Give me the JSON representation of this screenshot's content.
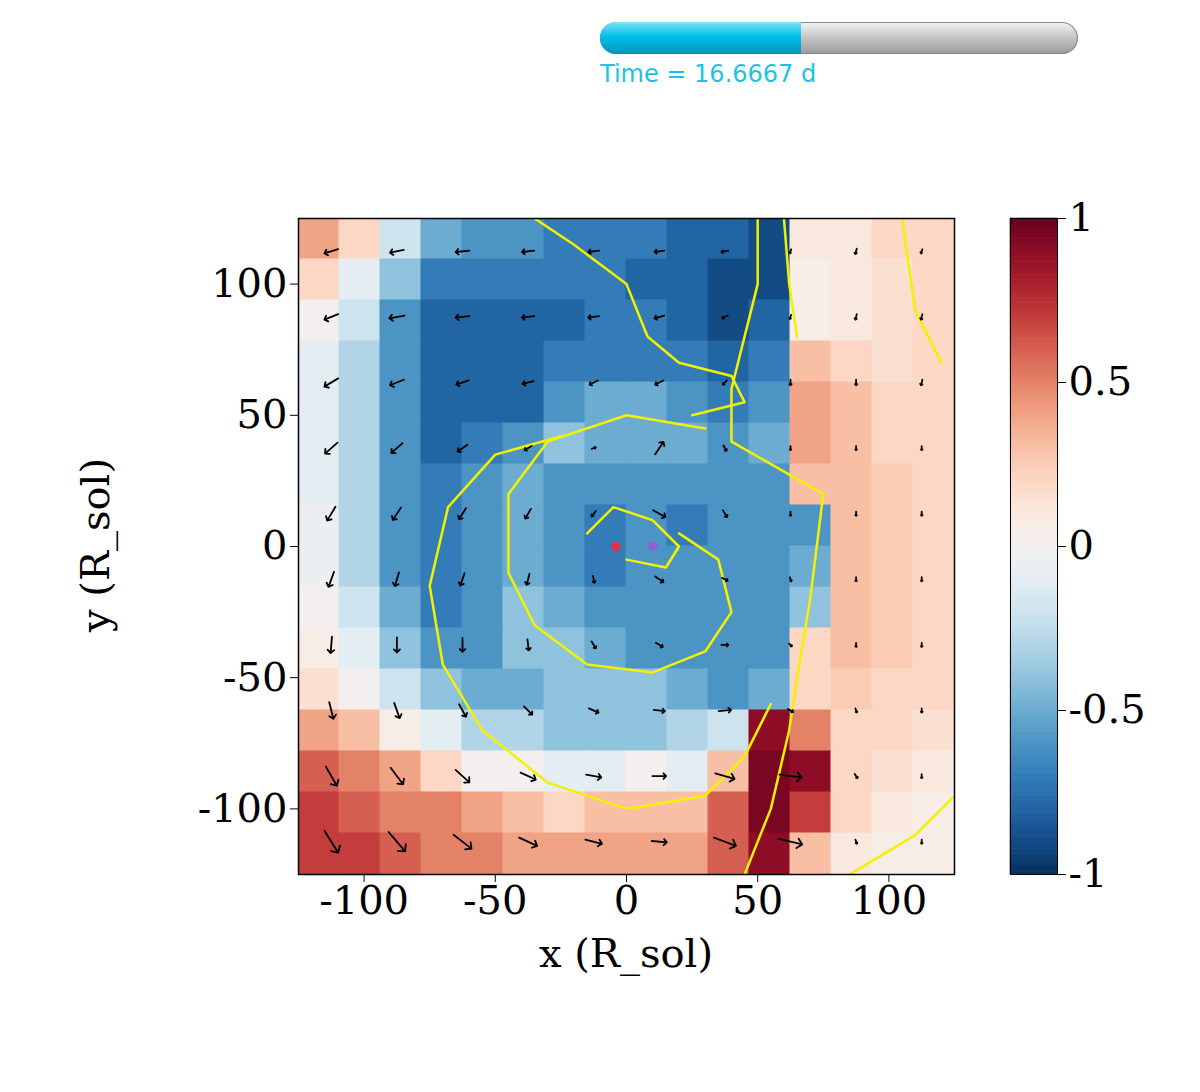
{
  "chart_data": {
    "type": "vector_field",
    "time_label": "Time = 16.6667 d",
    "progress": 0.42,
    "x_label": "x (R_sol)",
    "y_label": "y (R_sol)",
    "xlim": [
      -125,
      125
    ],
    "ylim": [
      -125,
      125
    ],
    "xticks": [
      -100,
      -50,
      0,
      50,
      100
    ],
    "yticks": [
      -100,
      -50,
      0,
      50,
      100
    ],
    "clim": [
      -1,
      1
    ],
    "cticks": [
      -1,
      -0.5,
      0,
      0.5,
      1
    ],
    "cells": {
      "x_edges": [
        -125,
        -109.375,
        -93.75,
        -78.125,
        -62.5,
        -46.875,
        -31.25,
        -15.625,
        0,
        15.625,
        31.25,
        46.875,
        62.5,
        78.125,
        93.75,
        109.375,
        125
      ],
      "y_edges": [
        125,
        109.375,
        93.75,
        78.125,
        62.5,
        46.875,
        31.25,
        15.625,
        0,
        -15.625,
        -31.25,
        -46.875,
        -62.5,
        -78.125,
        -93.75,
        -109.375,
        -125
      ],
      "values": [
        [
          0.4,
          0.2,
          -0.2,
          -0.5,
          -0.6,
          -0.6,
          -0.7,
          -0.7,
          -0.7,
          -0.8,
          -0.8,
          -0.9,
          0.1,
          0.1,
          0.2,
          0.2
        ],
        [
          0.2,
          -0.1,
          -0.4,
          -0.7,
          -0.7,
          -0.7,
          -0.7,
          -0.7,
          -0.8,
          -0.8,
          -0.9,
          -0.9,
          0.05,
          0.1,
          0.15,
          0.2
        ],
        [
          0.0,
          -0.2,
          -0.6,
          -0.8,
          -0.8,
          -0.8,
          -0.8,
          -0.7,
          -0.7,
          -0.8,
          -0.9,
          -0.8,
          0.05,
          0.1,
          0.15,
          0.2
        ],
        [
          -0.1,
          -0.3,
          -0.6,
          -0.8,
          -0.8,
          -0.8,
          -0.7,
          -0.7,
          -0.7,
          -0.7,
          -0.8,
          -0.7,
          0.3,
          0.2,
          0.15,
          0.2
        ],
        [
          -0.1,
          -0.3,
          -0.6,
          -0.8,
          -0.8,
          -0.8,
          -0.6,
          -0.5,
          -0.5,
          -0.6,
          -0.7,
          -0.6,
          0.4,
          0.3,
          0.2,
          0.2
        ],
        [
          -0.1,
          -0.3,
          -0.6,
          -0.8,
          -0.7,
          -0.6,
          -0.4,
          -0.5,
          -0.5,
          -0.5,
          -0.6,
          -0.5,
          0.4,
          0.3,
          0.2,
          0.2
        ],
        [
          -0.1,
          -0.3,
          -0.6,
          -0.7,
          -0.6,
          -0.5,
          -0.6,
          -0.6,
          -0.6,
          -0.6,
          -0.6,
          -0.6,
          0.3,
          0.3,
          0.25,
          0.2
        ],
        [
          -0.05,
          -0.3,
          -0.6,
          -0.7,
          -0.6,
          -0.5,
          -0.6,
          -0.7,
          -0.6,
          -0.7,
          -0.6,
          -0.6,
          -0.6,
          0.3,
          0.25,
          0.2
        ],
        [
          -0.05,
          -0.3,
          -0.6,
          -0.7,
          -0.6,
          -0.5,
          -0.6,
          -0.7,
          -0.6,
          -0.6,
          -0.6,
          -0.6,
          -0.5,
          0.3,
          0.25,
          0.2
        ],
        [
          0.0,
          -0.2,
          -0.5,
          -0.7,
          -0.6,
          -0.4,
          -0.5,
          -0.6,
          -0.6,
          -0.6,
          -0.6,
          -0.6,
          -0.4,
          0.3,
          0.25,
          0.2
        ],
        [
          0.05,
          -0.1,
          -0.4,
          -0.6,
          -0.6,
          -0.4,
          -0.4,
          -0.5,
          -0.6,
          -0.6,
          -0.6,
          -0.6,
          0.2,
          0.3,
          0.25,
          0.2
        ],
        [
          0.15,
          0.0,
          -0.2,
          -0.4,
          -0.5,
          -0.5,
          -0.4,
          -0.4,
          -0.4,
          -0.5,
          -0.6,
          -0.5,
          0.2,
          0.25,
          0.2,
          0.2
        ],
        [
          0.4,
          0.3,
          0.05,
          -0.1,
          -0.3,
          -0.3,
          -0.4,
          -0.4,
          -0.4,
          -0.3,
          -0.2,
          0.9,
          0.5,
          0.2,
          0.2,
          0.15
        ],
        [
          0.6,
          0.5,
          0.4,
          0.2,
          0.0,
          0.0,
          -0.1,
          -0.1,
          0.0,
          -0.1,
          0.3,
          0.95,
          0.9,
          0.2,
          0.15,
          0.1
        ],
        [
          0.7,
          0.6,
          0.5,
          0.5,
          0.4,
          0.3,
          0.2,
          0.3,
          0.3,
          0.3,
          0.6,
          0.95,
          0.7,
          0.2,
          0.1,
          0.05
        ],
        [
          0.7,
          0.7,
          0.6,
          0.5,
          0.5,
          0.4,
          0.4,
          0.4,
          0.4,
          0.4,
          0.6,
          0.9,
          0.3,
          0.1,
          0.05,
          0.05
        ]
      ]
    },
    "vectors": {
      "color": "#000000",
      "x": [
        -112.5,
        -87.5,
        -62.5,
        -37.5,
        -12.5,
        12.5,
        37.5,
        62.5,
        87.5,
        112.5
      ],
      "y": [
        112.5,
        87.5,
        62.5,
        37.5,
        12.5,
        -12.5,
        -37.5,
        -62.5,
        -87.5,
        -112.5
      ],
      "u": [
        [
          -1.0,
          -1.0,
          -1.0,
          -0.9,
          -0.8,
          -0.7,
          -0.5,
          -0.1,
          -0.1,
          -0.1
        ],
        [
          -1.0,
          -1.1,
          -1.0,
          -0.9,
          -0.8,
          -0.7,
          -0.4,
          -0.1,
          -0.1,
          -0.1
        ],
        [
          -1.0,
          -1.0,
          -0.9,
          -0.8,
          -0.6,
          -0.6,
          -0.3,
          0.0,
          0.0,
          -0.1
        ],
        [
          -0.9,
          -0.8,
          -0.7,
          -0.5,
          0.3,
          0.6,
          0.2,
          0.0,
          0.0,
          0.0
        ],
        [
          -0.6,
          -0.6,
          -0.5,
          -0.4,
          -0.3,
          0.9,
          0.3,
          0.0,
          0.0,
          0.0
        ],
        [
          -0.4,
          -0.3,
          -0.3,
          -0.2,
          0.1,
          0.6,
          0.4,
          0.1,
          0.0,
          0.0
        ],
        [
          -0.1,
          0.0,
          0.0,
          0.1,
          0.3,
          0.5,
          0.5,
          0.2,
          0.0,
          0.0
        ],
        [
          0.3,
          0.4,
          0.5,
          0.6,
          0.7,
          0.8,
          0.9,
          0.4,
          0.1,
          0.0
        ],
        [
          0.8,
          0.9,
          1.0,
          1.1,
          1.1,
          1.0,
          1.4,
          1.6,
          0.2,
          0.0
        ],
        [
          1.0,
          1.2,
          1.3,
          1.3,
          1.2,
          1.1,
          1.6,
          1.7,
          0.1,
          0.0
        ]
      ],
      "v": [
        [
          -0.3,
          -0.2,
          -0.1,
          -0.1,
          -0.1,
          -0.1,
          -0.1,
          -0.3,
          -0.4,
          -0.3
        ],
        [
          -0.4,
          -0.2,
          -0.1,
          -0.1,
          -0.1,
          -0.2,
          -0.2,
          -0.3,
          -0.4,
          -0.4
        ],
        [
          -0.6,
          -0.4,
          -0.3,
          -0.2,
          -0.3,
          -0.3,
          -0.3,
          -0.4,
          -0.4,
          -0.4
        ],
        [
          -0.8,
          -0.7,
          -0.5,
          -0.3,
          0.1,
          0.9,
          -0.4,
          -0.3,
          -0.3,
          -0.3
        ],
        [
          -1.0,
          -0.9,
          -0.8,
          -0.7,
          -0.4,
          -0.5,
          -0.5,
          -0.3,
          -0.3,
          -0.3
        ],
        [
          -1.1,
          -1.0,
          -0.9,
          -0.8,
          -0.5,
          -0.4,
          -0.2,
          -0.3,
          -0.3,
          -0.3
        ],
        [
          -1.2,
          -1.1,
          -1.0,
          -0.8,
          -0.5,
          -0.3,
          0.0,
          -0.2,
          -0.3,
          -0.3
        ],
        [
          -1.2,
          -1.1,
          -0.9,
          -0.6,
          -0.3,
          -0.1,
          0.1,
          -0.2,
          -0.3,
          -0.3
        ],
        [
          -1.4,
          -1.2,
          -0.9,
          -0.5,
          -0.2,
          0.0,
          -0.4,
          -0.2,
          -0.3,
          -0.3
        ],
        [
          -1.6,
          -1.4,
          -1.0,
          -0.6,
          -0.3,
          -0.1,
          -0.6,
          -0.4,
          -0.3,
          -0.3
        ]
      ]
    },
    "contours": {
      "color": "#f2f200",
      "lines": [
        [
          [
            -35,
            125
          ],
          [
            -20,
            115
          ],
          [
            0,
            100
          ],
          [
            8,
            80
          ],
          [
            20,
            70
          ],
          [
            40,
            65
          ],
          [
            45,
            55
          ],
          [
            25,
            50
          ]
        ],
        [
          [
            -25,
            42
          ],
          [
            -50,
            35
          ],
          [
            -68,
            15
          ],
          [
            -75,
            -15
          ],
          [
            -70,
            -45
          ],
          [
            -55,
            -70
          ],
          [
            -30,
            -90
          ],
          [
            0,
            -100
          ],
          [
            30,
            -95
          ],
          [
            45,
            -80
          ],
          [
            55,
            -60
          ]
        ],
        [
          [
            30,
            45
          ],
          [
            0,
            50
          ],
          [
            -30,
            40
          ],
          [
            -45,
            20
          ],
          [
            -45,
            -10
          ],
          [
            -35,
            -30
          ],
          [
            -15,
            -45
          ],
          [
            10,
            -48
          ],
          [
            30,
            -40
          ],
          [
            40,
            -25
          ],
          [
            35,
            -5
          ],
          [
            20,
            5
          ]
        ],
        [
          [
            -15,
            5
          ],
          [
            -5,
            15
          ],
          [
            10,
            10
          ],
          [
            20,
            0
          ],
          [
            15,
            -8
          ],
          [
            0,
            -5
          ]
        ],
        [
          [
            50,
            125
          ],
          [
            50,
            100
          ],
          [
            45,
            80
          ],
          [
            40,
            60
          ],
          [
            40,
            40
          ],
          [
            75,
            20
          ],
          [
            70,
            -20
          ],
          [
            65,
            -50
          ],
          [
            62,
            -70
          ],
          [
            55,
            -100
          ],
          [
            45,
            -125
          ]
        ],
        [
          [
            60,
            125
          ],
          [
            62,
            100
          ],
          [
            65,
            80
          ]
        ],
        [
          [
            105,
            125
          ],
          [
            110,
            90
          ],
          [
            120,
            70
          ]
        ],
        [
          [
            85,
            -125
          ],
          [
            110,
            -110
          ],
          [
            125,
            -95
          ]
        ]
      ]
    },
    "points": [
      {
        "x": -4,
        "y": 0,
        "color": "#e03050"
      },
      {
        "x": 10,
        "y": 0,
        "color": "#9060d0"
      }
    ]
  }
}
